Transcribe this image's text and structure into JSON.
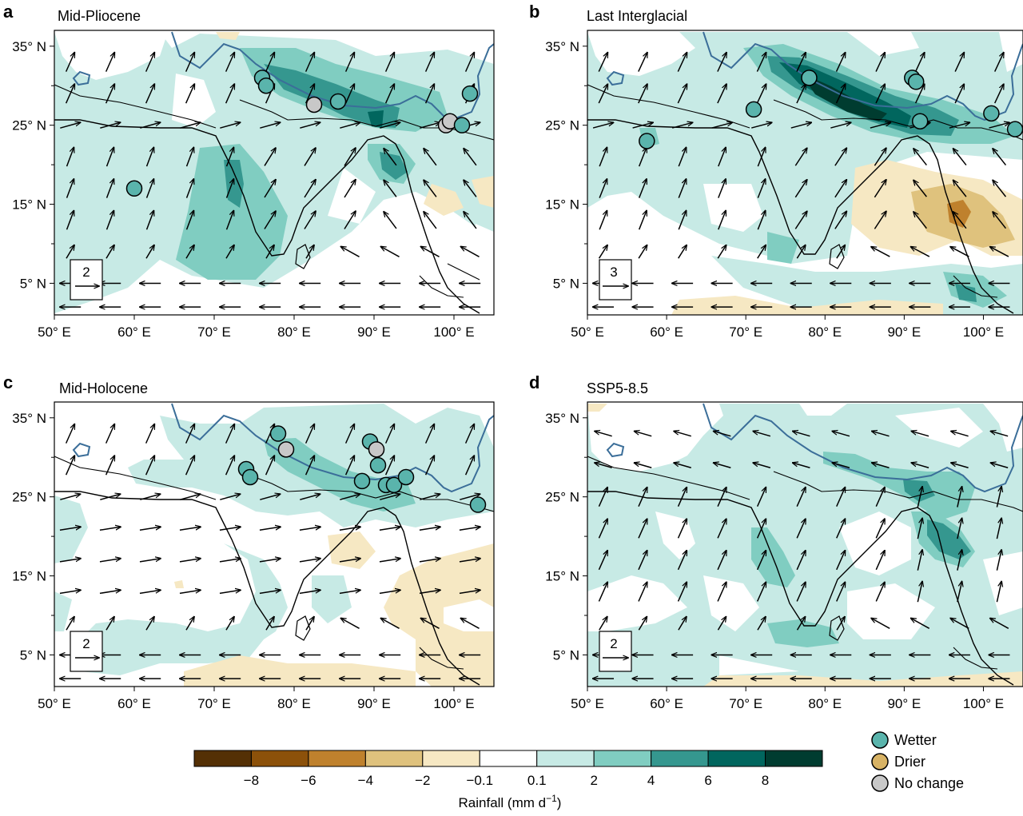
{
  "axes": {
    "x_ticks": [
      "50° E",
      "60° E",
      "70° E",
      "80° E",
      "90° E",
      "100° E"
    ],
    "y_ticks": [
      "35° N",
      "25° N",
      "15° N",
      "5° N"
    ],
    "lon_range": [
      50,
      105
    ],
    "lat_range": [
      1,
      37
    ]
  },
  "panels": [
    {
      "id": "a",
      "letter": "a",
      "title": "Mid-Pliocene",
      "arrow_scale": "2"
    },
    {
      "id": "b",
      "letter": "b",
      "title": "Last Interglacial",
      "arrow_scale": "3"
    },
    {
      "id": "c",
      "letter": "c",
      "title": "Mid-Holocene",
      "arrow_scale": "2"
    },
    {
      "id": "d",
      "letter": "d",
      "title": "SSP5-8.5",
      "arrow_scale": "2"
    }
  ],
  "colorbar": {
    "title": "Rainfall (mm d",
    "title_sup": "−1",
    "title_end": ")",
    "tick_labels": [
      "−8",
      "−6",
      "−4",
      "−2",
      "−0.1",
      "0.1",
      "2",
      "4",
      "6",
      "8"
    ],
    "colors": [
      "#543005",
      "#8c510a",
      "#bf812d",
      "#dfc27d",
      "#f6e8c3",
      "#ffffff",
      "#c7eae5",
      "#80cdc1",
      "#35978f",
      "#01665e",
      "#003c30"
    ]
  },
  "legend": {
    "items": [
      {
        "label": "Wetter",
        "color": "#5ab4ac"
      },
      {
        "label": "Drier",
        "color": "#d8b365"
      },
      {
        "label": "No change",
        "color": "#c8c8c8"
      }
    ]
  },
  "colors": {
    "wet1": "#c7eae5",
    "wet2": "#80cdc1",
    "wet3": "#35978f",
    "wet4": "#01665e",
    "wet5": "#003c30",
    "dry1": "#f6e8c3",
    "dry2": "#dfc27d",
    "dry3": "#bf812d",
    "plateau": "#3b6e99",
    "coast": "#000000"
  }
}
